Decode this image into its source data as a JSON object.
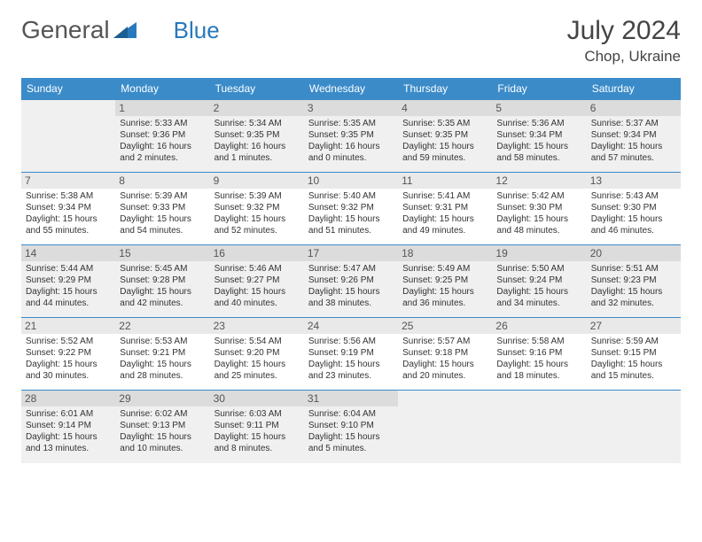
{
  "brand": {
    "part1": "General",
    "part2": "Blue"
  },
  "title": {
    "month": "July 2024",
    "location": "Chop, Ukraine"
  },
  "colors": {
    "header_bg": "#3b8bc9",
    "header_text": "#ffffff",
    "border": "#3b8bc9",
    "shaded_row": "#f0f0f0",
    "daynum_bg": "#e9e9e9",
    "text": "#333333",
    "brand_gray": "#555555",
    "brand_blue": "#2878bd"
  },
  "dayNames": [
    "Sunday",
    "Monday",
    "Tuesday",
    "Wednesday",
    "Thursday",
    "Friday",
    "Saturday"
  ],
  "weeks": [
    {
      "shaded": true,
      "days": [
        {
          "n": "",
          "empty": true
        },
        {
          "n": "1",
          "sunrise": "5:33 AM",
          "sunset": "9:36 PM",
          "daylight": "16 hours and 2 minutes."
        },
        {
          "n": "2",
          "sunrise": "5:34 AM",
          "sunset": "9:35 PM",
          "daylight": "16 hours and 1 minutes."
        },
        {
          "n": "3",
          "sunrise": "5:35 AM",
          "sunset": "9:35 PM",
          "daylight": "16 hours and 0 minutes."
        },
        {
          "n": "4",
          "sunrise": "5:35 AM",
          "sunset": "9:35 PM",
          "daylight": "15 hours and 59 minutes."
        },
        {
          "n": "5",
          "sunrise": "5:36 AM",
          "sunset": "9:34 PM",
          "daylight": "15 hours and 58 minutes."
        },
        {
          "n": "6",
          "sunrise": "5:37 AM",
          "sunset": "9:34 PM",
          "daylight": "15 hours and 57 minutes."
        }
      ]
    },
    {
      "shaded": false,
      "days": [
        {
          "n": "7",
          "sunrise": "5:38 AM",
          "sunset": "9:34 PM",
          "daylight": "15 hours and 55 minutes."
        },
        {
          "n": "8",
          "sunrise": "5:39 AM",
          "sunset": "9:33 PM",
          "daylight": "15 hours and 54 minutes."
        },
        {
          "n": "9",
          "sunrise": "5:39 AM",
          "sunset": "9:32 PM",
          "daylight": "15 hours and 52 minutes."
        },
        {
          "n": "10",
          "sunrise": "5:40 AM",
          "sunset": "9:32 PM",
          "daylight": "15 hours and 51 minutes."
        },
        {
          "n": "11",
          "sunrise": "5:41 AM",
          "sunset": "9:31 PM",
          "daylight": "15 hours and 49 minutes."
        },
        {
          "n": "12",
          "sunrise": "5:42 AM",
          "sunset": "9:30 PM",
          "daylight": "15 hours and 48 minutes."
        },
        {
          "n": "13",
          "sunrise": "5:43 AM",
          "sunset": "9:30 PM",
          "daylight": "15 hours and 46 minutes."
        }
      ]
    },
    {
      "shaded": true,
      "days": [
        {
          "n": "14",
          "sunrise": "5:44 AM",
          "sunset": "9:29 PM",
          "daylight": "15 hours and 44 minutes."
        },
        {
          "n": "15",
          "sunrise": "5:45 AM",
          "sunset": "9:28 PM",
          "daylight": "15 hours and 42 minutes."
        },
        {
          "n": "16",
          "sunrise": "5:46 AM",
          "sunset": "9:27 PM",
          "daylight": "15 hours and 40 minutes."
        },
        {
          "n": "17",
          "sunrise": "5:47 AM",
          "sunset": "9:26 PM",
          "daylight": "15 hours and 38 minutes."
        },
        {
          "n": "18",
          "sunrise": "5:49 AM",
          "sunset": "9:25 PM",
          "daylight": "15 hours and 36 minutes."
        },
        {
          "n": "19",
          "sunrise": "5:50 AM",
          "sunset": "9:24 PM",
          "daylight": "15 hours and 34 minutes."
        },
        {
          "n": "20",
          "sunrise": "5:51 AM",
          "sunset": "9:23 PM",
          "daylight": "15 hours and 32 minutes."
        }
      ]
    },
    {
      "shaded": false,
      "days": [
        {
          "n": "21",
          "sunrise": "5:52 AM",
          "sunset": "9:22 PM",
          "daylight": "15 hours and 30 minutes."
        },
        {
          "n": "22",
          "sunrise": "5:53 AM",
          "sunset": "9:21 PM",
          "daylight": "15 hours and 28 minutes."
        },
        {
          "n": "23",
          "sunrise": "5:54 AM",
          "sunset": "9:20 PM",
          "daylight": "15 hours and 25 minutes."
        },
        {
          "n": "24",
          "sunrise": "5:56 AM",
          "sunset": "9:19 PM",
          "daylight": "15 hours and 23 minutes."
        },
        {
          "n": "25",
          "sunrise": "5:57 AM",
          "sunset": "9:18 PM",
          "daylight": "15 hours and 20 minutes."
        },
        {
          "n": "26",
          "sunrise": "5:58 AM",
          "sunset": "9:16 PM",
          "daylight": "15 hours and 18 minutes."
        },
        {
          "n": "27",
          "sunrise": "5:59 AM",
          "sunset": "9:15 PM",
          "daylight": "15 hours and 15 minutes."
        }
      ]
    },
    {
      "shaded": true,
      "days": [
        {
          "n": "28",
          "sunrise": "6:01 AM",
          "sunset": "9:14 PM",
          "daylight": "15 hours and 13 minutes."
        },
        {
          "n": "29",
          "sunrise": "6:02 AM",
          "sunset": "9:13 PM",
          "daylight": "15 hours and 10 minutes."
        },
        {
          "n": "30",
          "sunrise": "6:03 AM",
          "sunset": "9:11 PM",
          "daylight": "15 hours and 8 minutes."
        },
        {
          "n": "31",
          "sunrise": "6:04 AM",
          "sunset": "9:10 PM",
          "daylight": "15 hours and 5 minutes."
        },
        {
          "n": "",
          "empty": true
        },
        {
          "n": "",
          "empty": true
        },
        {
          "n": "",
          "empty": true
        }
      ]
    }
  ],
  "labels": {
    "sunrise": "Sunrise:",
    "sunset": "Sunset:",
    "daylight": "Daylight:"
  }
}
